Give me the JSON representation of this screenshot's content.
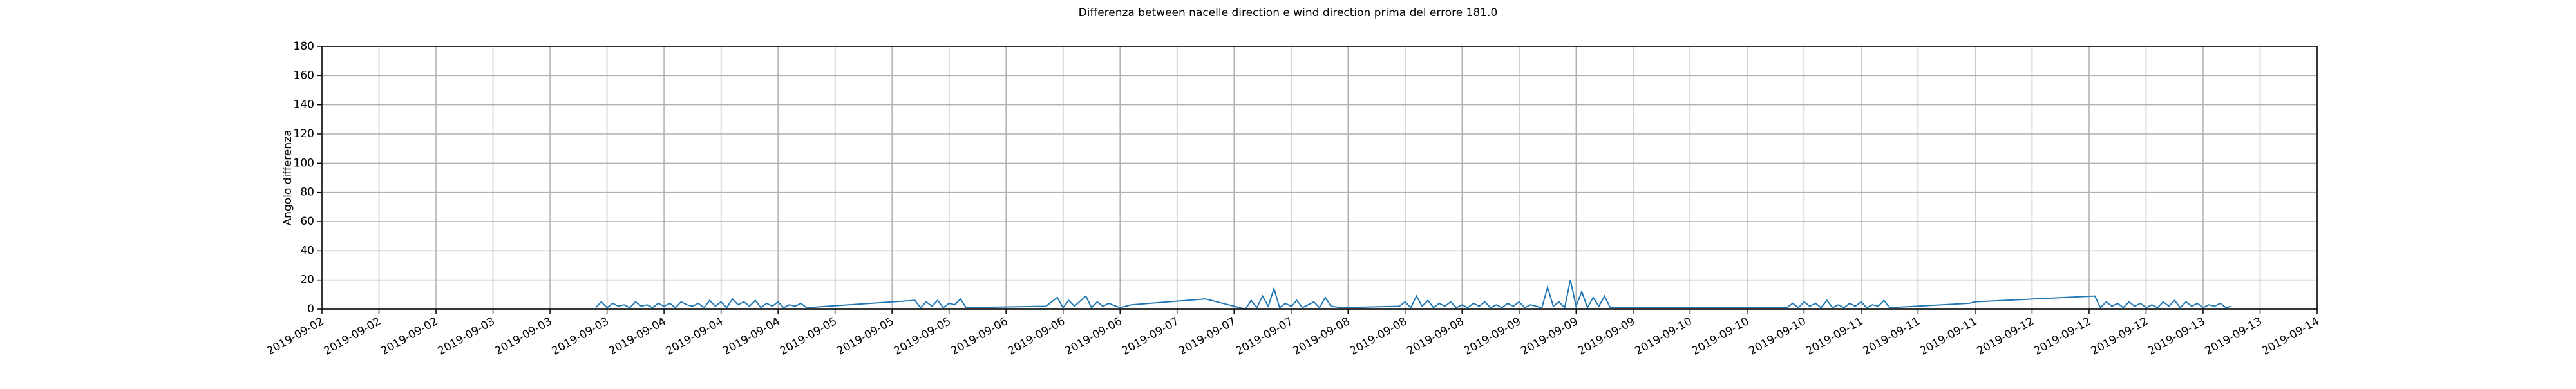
{
  "chart_data": {
    "type": "line",
    "title": "Differenza between nacelle direction e wind direction prima del errore 181.0",
    "y_label": "Angolo differenza",
    "color": "#1f77b4",
    "grid": true,
    "ylim": [
      0,
      180
    ],
    "yticks": [
      0,
      20,
      40,
      60,
      80,
      100,
      120,
      140,
      160,
      180
    ],
    "xlim": [
      0,
      35
    ],
    "xticks": [
      {
        "value": 0,
        "label": "2019-09-02"
      },
      {
        "value": 1,
        "label": "2019-09-02"
      },
      {
        "value": 2,
        "label": "2019-09-02"
      },
      {
        "value": 3,
        "label": "2019-09-03"
      },
      {
        "value": 4,
        "label": "2019-09-03"
      },
      {
        "value": 5,
        "label": "2019-09-03"
      },
      {
        "value": 6,
        "label": "2019-09-04"
      },
      {
        "value": 7,
        "label": "2019-09-04"
      },
      {
        "value": 8,
        "label": "2019-09-04"
      },
      {
        "value": 9,
        "label": "2019-09-05"
      },
      {
        "value": 10,
        "label": "2019-09-05"
      },
      {
        "value": 11,
        "label": "2019-09-05"
      },
      {
        "value": 12,
        "label": "2019-09-06"
      },
      {
        "value": 13,
        "label": "2019-09-06"
      },
      {
        "value": 14,
        "label": "2019-09-06"
      },
      {
        "value": 15,
        "label": "2019-09-07"
      },
      {
        "value": 16,
        "label": "2019-09-07"
      },
      {
        "value": 17,
        "label": "2019-09-07"
      },
      {
        "value": 18,
        "label": "2019-09-08"
      },
      {
        "value": 19,
        "label": "2019-09-08"
      },
      {
        "value": 20,
        "label": "2019-09-08"
      },
      {
        "value": 21,
        "label": "2019-09-09"
      },
      {
        "value": 22,
        "label": "2019-09-09"
      },
      {
        "value": 23,
        "label": "2019-09-09"
      },
      {
        "value": 24,
        "label": "2019-09-10"
      },
      {
        "value": 25,
        "label": "2019-09-10"
      },
      {
        "value": 26,
        "label": "2019-09-10"
      },
      {
        "value": 27,
        "label": "2019-09-11"
      },
      {
        "value": 28,
        "label": "2019-09-11"
      },
      {
        "value": 29,
        "label": "2019-09-11"
      },
      {
        "value": 30,
        "label": "2019-09-12"
      },
      {
        "value": 31,
        "label": "2019-09-12"
      },
      {
        "value": 32,
        "label": "2019-09-12"
      },
      {
        "value": 33,
        "label": "2019-09-13"
      },
      {
        "value": 34,
        "label": "2019-09-13"
      },
      {
        "value": 35,
        "label": "2019-09-14"
      }
    ],
    "x": [
      4.8,
      4.9,
      5.0,
      5.1,
      5.2,
      5.3,
      5.4,
      5.5,
      5.6,
      5.7,
      5.8,
      5.9,
      6.0,
      6.1,
      6.2,
      6.3,
      6.4,
      6.5,
      6.6,
      6.7,
      6.8,
      6.9,
      7.0,
      7.1,
      7.2,
      7.3,
      7.4,
      7.5,
      7.6,
      7.7,
      7.8,
      7.9,
      8.0,
      8.1,
      8.2,
      8.3,
      8.4,
      8.5,
      10.4,
      10.5,
      10.6,
      10.7,
      10.8,
      10.9,
      11.0,
      11.1,
      11.2,
      11.3,
      12.7,
      12.9,
      13.0,
      13.1,
      13.2,
      13.4,
      13.5,
      13.6,
      13.7,
      13.8,
      14.0,
      14.2,
      15.5,
      16.2,
      16.3,
      16.4,
      16.5,
      16.6,
      16.7,
      16.8,
      16.9,
      17.0,
      17.1,
      17.2,
      17.4,
      17.5,
      17.6,
      17.7,
      17.9,
      18.9,
      19.0,
      19.1,
      19.2,
      19.3,
      19.4,
      19.5,
      19.6,
      19.7,
      19.8,
      19.9,
      20.0,
      20.1,
      20.2,
      20.3,
      20.4,
      20.5,
      20.6,
      20.7,
      20.8,
      20.9,
      21.0,
      21.1,
      21.2,
      21.4,
      21.5,
      21.6,
      21.7,
      21.8,
      21.9,
      22.0,
      22.1,
      22.2,
      22.3,
      22.4,
      22.5,
      22.6,
      25.7,
      25.8,
      25.9,
      26.0,
      26.1,
      26.2,
      26.3,
      26.4,
      26.5,
      26.6,
      26.7,
      26.8,
      26.9,
      27.0,
      27.1,
      27.2,
      27.3,
      27.4,
      27.5,
      28.9,
      29.0,
      31.1,
      31.2,
      31.3,
      31.4,
      31.5,
      31.6,
      31.7,
      31.8,
      31.9,
      32.0,
      32.1,
      32.2,
      32.3,
      32.4,
      32.5,
      32.6,
      32.7,
      32.8,
      32.9,
      33.0,
      33.1,
      33.2,
      33.3,
      33.4,
      33.5
    ],
    "values": [
      1,
      5,
      1,
      4,
      2,
      3,
      1,
      5,
      2,
      3,
      1,
      4,
      2,
      4,
      1,
      5,
      3,
      2,
      4,
      1,
      6,
      2,
      5,
      1,
      7,
      3,
      5,
      2,
      6,
      1,
      4,
      2,
      5,
      1,
      3,
      2,
      4,
      1,
      6,
      1,
      5,
      2,
      6,
      1,
      4,
      3,
      7,
      1,
      2,
      8,
      1,
      6,
      2,
      9,
      1,
      5,
      2,
      4,
      1,
      3,
      7,
      0,
      6,
      1,
      9,
      2,
      14,
      1,
      4,
      2,
      6,
      1,
      5,
      1,
      8,
      2,
      1,
      2,
      5,
      1,
      9,
      2,
      6,
      1,
      4,
      2,
      5,
      1,
      3,
      1,
      4,
      2,
      5,
      1,
      3,
      1,
      4,
      2,
      5,
      1,
      3,
      1,
      15,
      2,
      5,
      1,
      20,
      2,
      12,
      1,
      8,
      2,
      9,
      1,
      1,
      4,
      1,
      5,
      2,
      4,
      1,
      6,
      1,
      3,
      1,
      4,
      2,
      5,
      1,
      3,
      2,
      6,
      1,
      4,
      5,
      9,
      1,
      5,
      2,
      4,
      1,
      5,
      2,
      4,
      1,
      3,
      1,
      5,
      2,
      6,
      1,
      5,
      2,
      4,
      1,
      3,
      2,
      4,
      1,
      2
    ]
  }
}
